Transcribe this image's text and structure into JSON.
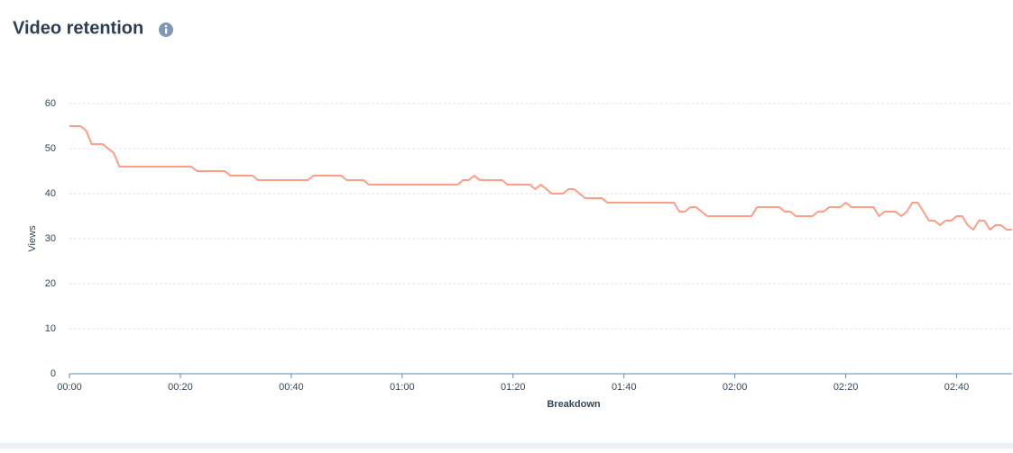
{
  "chart_data": {
    "type": "line",
    "title": "Video retention",
    "x_label": "Breakdown",
    "y_label": "Views",
    "x": [
      0,
      2,
      3,
      4,
      6,
      8,
      9,
      22,
      23,
      28,
      29,
      33,
      34,
      43,
      44,
      49,
      50,
      53,
      54,
      70,
      71,
      72,
      73,
      74,
      78,
      79,
      83,
      84,
      85,
      87,
      89,
      90,
      91,
      93,
      96,
      97,
      109,
      110,
      111,
      112,
      113,
      115,
      123,
      124,
      128,
      129,
      130,
      131,
      134,
      135,
      136,
      137,
      139,
      140,
      141,
      145,
      146,
      147,
      149,
      150,
      151,
      152,
      153,
      154,
      155,
      156,
      157,
      158,
      159,
      160,
      161,
      162,
      163,
      164,
      165,
      166,
      167,
      168,
      169,
      170
    ],
    "values": [
      55,
      55,
      54,
      51,
      51,
      49,
      46,
      46,
      45,
      45,
      44,
      44,
      43,
      43,
      44,
      44,
      43,
      43,
      42,
      42,
      43,
      43,
      44,
      43,
      43,
      42,
      42,
      41,
      42,
      40,
      40,
      41,
      41,
      39,
      39,
      38,
      38,
      36,
      36,
      37,
      37,
      35,
      35,
      37,
      37,
      36,
      36,
      35,
      35,
      36,
      36,
      37,
      37,
      38,
      37,
      37,
      35,
      36,
      36,
      35,
      36,
      38,
      38,
      36,
      34,
      34,
      33,
      34,
      34,
      35,
      35,
      33,
      32,
      34,
      34,
      32,
      33,
      33,
      32,
      32
    ],
    "color": "#ff9d85",
    "xlim": [
      0,
      170
    ],
    "xticks": [
      {
        "value": 0,
        "label": "00:00"
      },
      {
        "value": 20,
        "label": "00:20"
      },
      {
        "value": 40,
        "label": "00:40"
      },
      {
        "value": 60,
        "label": "01:00"
      },
      {
        "value": 80,
        "label": "01:20"
      },
      {
        "value": 100,
        "label": "01:40"
      },
      {
        "value": 120,
        "label": "02:00"
      },
      {
        "value": 140,
        "label": "02:20"
      },
      {
        "value": 160,
        "label": "02:40"
      }
    ],
    "ylim": [
      0,
      60
    ],
    "yticks": [
      0,
      10,
      20,
      30,
      40,
      50,
      60
    ],
    "grid": true
  }
}
